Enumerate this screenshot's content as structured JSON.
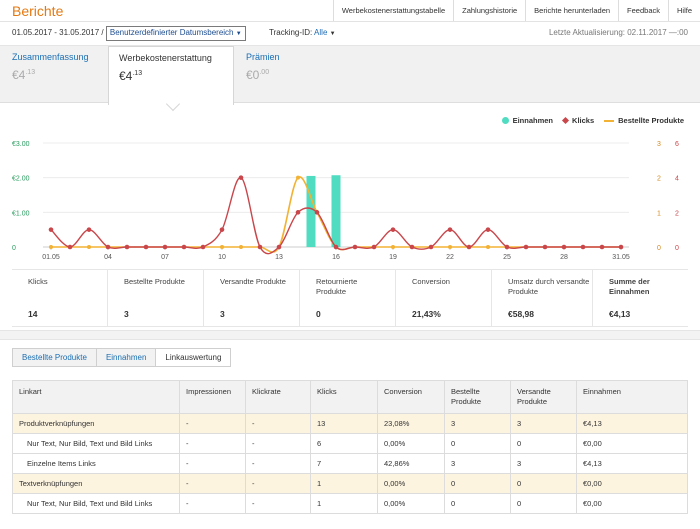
{
  "page": {
    "title": "Berichte"
  },
  "toplinks": [
    "Werbekostenerstattungstabelle",
    "Zahlungshistorie",
    "Berichte herunterladen",
    "Feedback",
    "Hilfe"
  ],
  "daterow": {
    "range": "01.05.2017 - 31.05.2017 /",
    "dropdown": "Benutzerdefinierter Datumsbereich",
    "tracking_label": "Tracking-ID:",
    "tracking_value": "Alle",
    "updated": "Letzte Aktualisierung: 02.11.2017 —:00"
  },
  "tabs": [
    {
      "label": "Zusammenfassung",
      "amount": "€4",
      "cents": ".13"
    },
    {
      "label": "Werbekostenerstattung",
      "amount": "€4",
      "cents": ".13"
    },
    {
      "label": "Prämien",
      "amount": "€0",
      "cents": ".00"
    }
  ],
  "legend": [
    {
      "label": "Einnahmen",
      "color": "#4fdcc0"
    },
    {
      "label": "Klicks",
      "color": "#c9464b"
    },
    {
      "label": "Bestellte Produkte",
      "color": "#f2b233"
    }
  ],
  "chart_data": {
    "type": "line",
    "x": [
      "01.05",
      "02.05",
      "03.05",
      "04.05",
      "05.05",
      "06.05",
      "07.05",
      "08.05",
      "09.05",
      "10.05",
      "11.05",
      "12.05",
      "13.05",
      "14.05",
      "15.05",
      "16.05",
      "17.05",
      "18.05",
      "19.05",
      "20.05",
      "21.05",
      "22.05",
      "23.05",
      "24.05",
      "25.05",
      "26.05",
      "27.05",
      "28.05",
      "29.05",
      "30.05",
      "31.05"
    ],
    "x_tick_labels": [
      "01.05",
      "04",
      "07",
      "10",
      "13",
      "16",
      "19",
      "22",
      "25",
      "28",
      "31.05"
    ],
    "left_axis": {
      "ticks": [
        "€3.00",
        "€2.00",
        "€1.00",
        "0"
      ],
      "ylim": [
        0,
        3
      ]
    },
    "right_axis_outer": {
      "ticks": [
        "6",
        "4",
        "2",
        "0"
      ],
      "ylim": [
        0,
        6
      ]
    },
    "right_axis_inner": {
      "ticks": [
        "3",
        "2",
        "1",
        "0"
      ],
      "ylim": [
        0,
        3
      ]
    },
    "series": [
      {
        "name": "Einnahmen",
        "type": "bar",
        "values": [
          0,
          0,
          0,
          0,
          0,
          0,
          0,
          0,
          0,
          0,
          0,
          0,
          0,
          0,
          2.05,
          2.07,
          0,
          0,
          0,
          0,
          0,
          0,
          0,
          0,
          0,
          0,
          0,
          0,
          0,
          0,
          0
        ]
      },
      {
        "name": "Klicks",
        "type": "line",
        "values": [
          1,
          0,
          1,
          0,
          0,
          0,
          0,
          0,
          0,
          1,
          4,
          0,
          0,
          2,
          2,
          0,
          0,
          0,
          1,
          0,
          0,
          1,
          0,
          1,
          0,
          0,
          0,
          0,
          0,
          0,
          0
        ]
      },
      {
        "name": "Bestellte Produkte",
        "type": "line",
        "values": [
          0,
          0,
          0,
          0,
          0,
          0,
          0,
          0,
          0,
          0,
          0,
          0,
          0,
          2,
          1,
          0,
          0,
          0,
          0,
          0,
          0,
          0,
          0,
          0,
          0,
          0,
          0,
          0,
          0,
          0,
          0
        ]
      }
    ]
  },
  "stats": [
    {
      "label": "Klicks",
      "value": "14"
    },
    {
      "label": "Bestellte Produkte",
      "value": "3"
    },
    {
      "label": "Versandte Produkte",
      "value": "3"
    },
    {
      "label": "Retournierte Produkte",
      "value": "0"
    },
    {
      "label": "Conversion",
      "value": "21,43%"
    },
    {
      "label": "Umsatz durch versandte Produkte",
      "value": "€58,98"
    },
    {
      "label": "Summe der Einnahmen",
      "value": "€4,13"
    }
  ],
  "subtabs": [
    "Bestellte Produkte",
    "Einnahmen",
    "Linkauswertung"
  ],
  "table": {
    "headers": [
      "Linkart",
      "Impressionen",
      "Klickrate",
      "Klicks",
      "Conversion",
      "Bestellte Produkte",
      "Versandte Produkte",
      "Einnahmen"
    ],
    "rows": [
      {
        "group": true,
        "cells": [
          "Produktverknüpfungen",
          "-",
          "-",
          "13",
          "23,08%",
          "3",
          "3",
          "€4,13"
        ]
      },
      {
        "group": false,
        "cells": [
          "Nur Text, Nur Bild, Text und Bild Links",
          "-",
          "-",
          "6",
          "0,00%",
          "0",
          "0",
          "€0,00"
        ]
      },
      {
        "group": false,
        "cells": [
          "Einzelne Items Links",
          "-",
          "-",
          "7",
          "42,86%",
          "3",
          "3",
          "€4,13"
        ]
      },
      {
        "group": true,
        "cells": [
          "Textverknüpfungen",
          "-",
          "-",
          "1",
          "0,00%",
          "0",
          "0",
          "€0,00"
        ]
      },
      {
        "group": false,
        "cells": [
          "Nur Text, Nur Bild, Text und Bild Links",
          "-",
          "-",
          "1",
          "0,00%",
          "0",
          "0",
          "€0,00"
        ]
      }
    ]
  }
}
